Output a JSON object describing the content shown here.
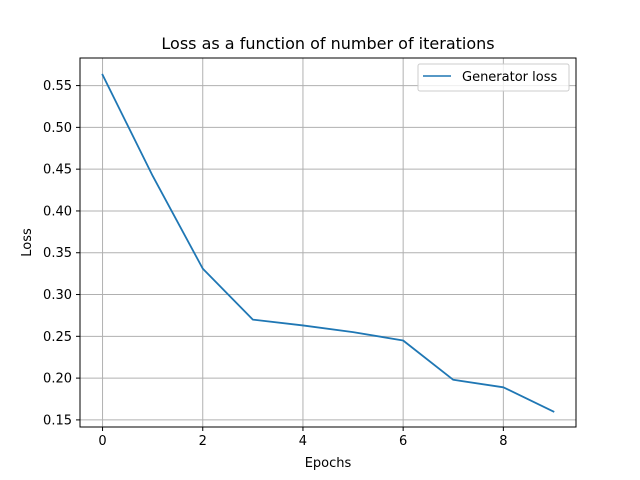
{
  "chart_data": {
    "type": "line",
    "title": "Loss as a function of number of iterations",
    "xlabel": "Epochs",
    "ylabel": "Loss",
    "xlim": [
      -0.45,
      9.45
    ],
    "ylim": [
      0.1415,
      0.583
    ],
    "x_ticks": [
      0,
      2,
      4,
      6,
      8
    ],
    "x_tick_labels": [
      "0",
      "2",
      "4",
      "6",
      "8"
    ],
    "y_ticks": [
      0.15,
      0.2,
      0.25,
      0.3,
      0.35,
      0.4,
      0.45,
      0.5,
      0.55
    ],
    "y_tick_labels": [
      "0.15",
      "0.20",
      "0.25",
      "0.30",
      "0.35",
      "0.40",
      "0.45",
      "0.50",
      "0.55"
    ],
    "grid": true,
    "legend_position": "top-right",
    "series": [
      {
        "name": "Generator loss",
        "color": "#1f77b4",
        "x": [
          0,
          1,
          2,
          3,
          4,
          5,
          6,
          7,
          8,
          9
        ],
        "y": [
          0.563,
          0.442,
          0.331,
          0.27,
          0.263,
          0.255,
          0.245,
          0.198,
          0.189,
          0.16
        ]
      }
    ]
  }
}
